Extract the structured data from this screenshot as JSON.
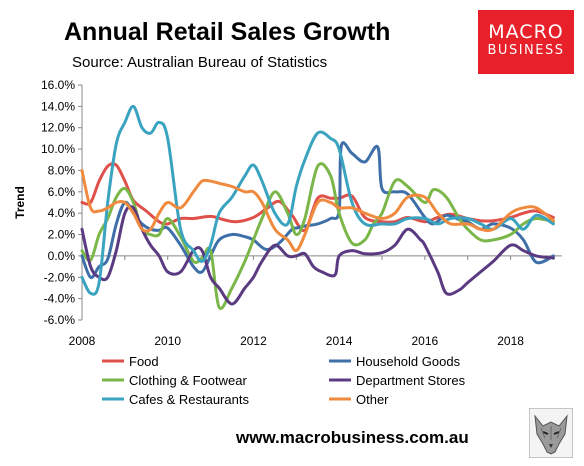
{
  "header": {
    "title": "Annual Retail Sales Growth",
    "subtitle": "Source: Australian Bureau of Statistics"
  },
  "logo": {
    "line1": "MACRO",
    "line2": "BUSINESS",
    "color": "#e8202a"
  },
  "footer": {
    "website": "www.macrobusiness.com.au"
  },
  "chart_data": {
    "type": "line",
    "title": "Annual Retail Sales Growth",
    "ylabel": "Trend",
    "xlabel": "",
    "xlim": [
      2008,
      2019.2
    ],
    "ylim": [
      -6,
      16
    ],
    "y_ticks": [
      "-6.0%",
      "-4.0%",
      "-2.0%",
      "0.0%",
      "2.0%",
      "4.0%",
      "6.0%",
      "8.0%",
      "10.0%",
      "12.0%",
      "14.0%",
      "16.0%"
    ],
    "y_tick_values": [
      -6,
      -4,
      -2,
      0,
      2,
      4,
      6,
      8,
      10,
      12,
      14,
      16
    ],
    "x_ticks": [
      "2008",
      "2010",
      "2012",
      "2014",
      "2016",
      "2018"
    ],
    "x_tick_values": [
      2008,
      2010,
      2012,
      2014,
      2016,
      2018
    ],
    "grid": false,
    "legend_position": "bottom",
    "series": [
      {
        "name": "Food",
        "color": "#e0504a",
        "x": [
          2008.0,
          2008.2,
          2008.4,
          2008.6,
          2008.8,
          2009.0,
          2009.2,
          2009.5,
          2009.8,
          2010.0,
          2010.3,
          2010.6,
          2011.0,
          2011.3,
          2011.6,
          2012.0,
          2012.3,
          2012.6,
          2012.9,
          2013.2,
          2013.5,
          2013.8,
          2014.0,
          2014.3,
          2014.6,
          2015.0,
          2015.3,
          2015.6,
          2016.0,
          2016.3,
          2016.6,
          2017.0,
          2017.3,
          2017.6,
          2018.0,
          2018.3,
          2018.6,
          2019.0
        ],
        "y": [
          5.0,
          5.0,
          7.0,
          8.4,
          8.5,
          7.0,
          5.2,
          4.2,
          3.2,
          3.0,
          3.5,
          3.5,
          3.7,
          3.4,
          3.2,
          3.6,
          4.4,
          5.1,
          3.8,
          2.4,
          5.4,
          5.4,
          5.4,
          5.6,
          3.6,
          3.2,
          3.2,
          3.6,
          3.2,
          3.6,
          3.9,
          3.5,
          3.3,
          3.3,
          3.6,
          4.0,
          4.2,
          3.6
        ]
      },
      {
        "name": "Household Goods",
        "color": "#3f6fa8",
        "x": [
          2008.0,
          2008.2,
          2008.4,
          2008.6,
          2008.8,
          2009.0,
          2009.2,
          2009.4,
          2009.6,
          2009.8,
          2010.0,
          2010.3,
          2010.6,
          2010.8,
          2011.0,
          2011.2,
          2011.5,
          2011.8,
          2012.0,
          2012.3,
          2012.6,
          2012.9,
          2013.0,
          2013.2,
          2013.5,
          2013.8,
          2014.0,
          2014.05,
          2014.3,
          2014.6,
          2014.9,
          2015.0,
          2015.3,
          2015.6,
          2016.0,
          2016.2,
          2016.5,
          2016.8,
          2017.0,
          2017.3,
          2017.6,
          2018.0,
          2018.3,
          2018.6,
          2019.0
        ],
        "y": [
          0.0,
          -2.0,
          -1.0,
          -0.3,
          3.0,
          5.0,
          4.0,
          3.0,
          2.5,
          2.4,
          2.6,
          1.0,
          -1.0,
          -1.5,
          0.0,
          1.5,
          2.0,
          1.8,
          1.5,
          0.6,
          1.2,
          2.5,
          2.6,
          2.8,
          3.0,
          3.5,
          4.2,
          10.3,
          9.6,
          8.8,
          10.2,
          6.3,
          6.0,
          5.8,
          3.6,
          3.0,
          3.8,
          3.4,
          3.2,
          2.5,
          3.0,
          2.6,
          1.5,
          -0.6,
          0.0
        ]
      },
      {
        "name": "Clothing & Footwear",
        "color": "#7ab648",
        "x": [
          2008.0,
          2008.2,
          2008.4,
          2008.6,
          2008.8,
          2009.0,
          2009.2,
          2009.4,
          2009.6,
          2009.8,
          2010.0,
          2010.3,
          2010.6,
          2010.8,
          2011.0,
          2011.2,
          2011.5,
          2011.8,
          2012.0,
          2012.2,
          2012.5,
          2012.8,
          2013.0,
          2013.2,
          2013.5,
          2013.8,
          2014.0,
          2014.3,
          2014.6,
          2014.8,
          2015.0,
          2015.3,
          2015.6,
          2016.0,
          2016.2,
          2016.5,
          2016.8,
          2017.0,
          2017.3,
          2017.6,
          2018.0,
          2018.3,
          2018.6,
          2019.0
        ],
        "y": [
          0.5,
          -0.4,
          2.0,
          3.5,
          5.5,
          6.3,
          5.0,
          2.5,
          2.0,
          2.0,
          3.5,
          1.8,
          -0.5,
          -0.2,
          0.5,
          -4.8,
          -3.0,
          -0.5,
          1.5,
          3.5,
          6.0,
          4.0,
          2.0,
          3.5,
          8.4,
          7.5,
          4.0,
          1.2,
          1.5,
          3.0,
          4.0,
          7.0,
          6.5,
          5.0,
          6.2,
          5.5,
          3.5,
          2.5,
          1.5,
          1.5,
          2.0,
          3.0,
          3.5,
          3.2
        ]
      },
      {
        "name": "Department Stores",
        "color": "#5a3a80",
        "x": [
          2008.0,
          2008.2,
          2008.4,
          2008.6,
          2008.8,
          2009.0,
          2009.2,
          2009.4,
          2009.6,
          2009.8,
          2010.0,
          2010.3,
          2010.6,
          2010.8,
          2011.0,
          2011.2,
          2011.5,
          2011.8,
          2012.0,
          2012.2,
          2012.5,
          2012.8,
          2013.0,
          2013.2,
          2013.4,
          2013.6,
          2013.9,
          2014.0,
          2014.3,
          2014.6,
          2015.0,
          2015.3,
          2015.6,
          2015.9,
          2016.0,
          2016.3,
          2016.5,
          2016.8,
          2017.0,
          2017.3,
          2017.6,
          2018.0,
          2018.3,
          2018.6,
          2019.0
        ],
        "y": [
          2.5,
          -1.0,
          -2.0,
          -2.0,
          0.5,
          4.0,
          4.5,
          2.5,
          1.0,
          0.0,
          -1.5,
          -1.5,
          0.5,
          0.5,
          -2.0,
          -3.0,
          -4.5,
          -3.0,
          -2.0,
          -0.5,
          1.0,
          0.0,
          0.0,
          0.2,
          -1.0,
          -1.5,
          -1.8,
          0.0,
          0.5,
          0.2,
          0.3,
          1.0,
          2.5,
          1.5,
          1.0,
          -1.5,
          -3.5,
          -3.2,
          -2.5,
          -1.5,
          -0.5,
          1.0,
          0.5,
          0.0,
          -0.2
        ]
      },
      {
        "name": "Cafes & Restaurants",
        "color": "#3aa3c0",
        "x": [
          2008.0,
          2008.2,
          2008.4,
          2008.6,
          2008.8,
          2009.0,
          2009.2,
          2009.4,
          2009.6,
          2009.8,
          2010.0,
          2010.3,
          2010.6,
          2010.8,
          2011.0,
          2011.2,
          2011.5,
          2011.8,
          2012.0,
          2012.2,
          2012.5,
          2012.8,
          2013.0,
          2013.2,
          2013.5,
          2013.8,
          2014.0,
          2014.3,
          2014.6,
          2015.0,
          2015.3,
          2015.6,
          2016.0,
          2016.3,
          2016.6,
          2017.0,
          2017.3,
          2017.6,
          2018.0,
          2018.3,
          2018.6,
          2019.0
        ],
        "y": [
          -2.0,
          -3.5,
          -2.5,
          5.0,
          10.5,
          12.5,
          14.0,
          12.0,
          11.5,
          12.5,
          11.0,
          2.5,
          0.5,
          -0.5,
          1.0,
          4.0,
          5.5,
          7.5,
          8.5,
          7.0,
          4.0,
          3.0,
          6.5,
          9.0,
          11.5,
          11.0,
          10.0,
          5.0,
          3.0,
          3.0,
          3.0,
          3.5,
          3.5,
          3.0,
          3.5,
          3.5,
          3.0,
          2.5,
          3.5,
          2.5,
          3.8,
          3.0
        ]
      },
      {
        "name": "Other",
        "color": "#f08a3e",
        "x": [
          2008.0,
          2008.2,
          2008.4,
          2008.6,
          2008.8,
          2009.0,
          2009.2,
          2009.4,
          2009.6,
          2009.8,
          2010.0,
          2010.3,
          2010.6,
          2010.8,
          2011.0,
          2011.2,
          2011.5,
          2011.8,
          2012.0,
          2012.2,
          2012.5,
          2012.8,
          2013.0,
          2013.2,
          2013.5,
          2013.8,
          2014.0,
          2014.3,
          2014.6,
          2015.0,
          2015.3,
          2015.6,
          2016.0,
          2016.3,
          2016.6,
          2017.0,
          2017.3,
          2017.6,
          2018.0,
          2018.3,
          2018.6,
          2019.0
        ],
        "y": [
          8.0,
          4.5,
          4.2,
          4.5,
          5.0,
          5.0,
          4.0,
          2.5,
          2.5,
          4.0,
          5.0,
          4.5,
          6.0,
          7.0,
          7.0,
          6.8,
          6.5,
          6.0,
          6.0,
          5.0,
          2.5,
          1.5,
          0.5,
          2.0,
          5.0,
          5.0,
          4.5,
          4.5,
          4.0,
          3.5,
          4.0,
          5.5,
          5.5,
          4.0,
          3.0,
          3.0,
          2.5,
          2.5,
          4.0,
          4.5,
          4.5,
          3.3
        ]
      }
    ]
  }
}
